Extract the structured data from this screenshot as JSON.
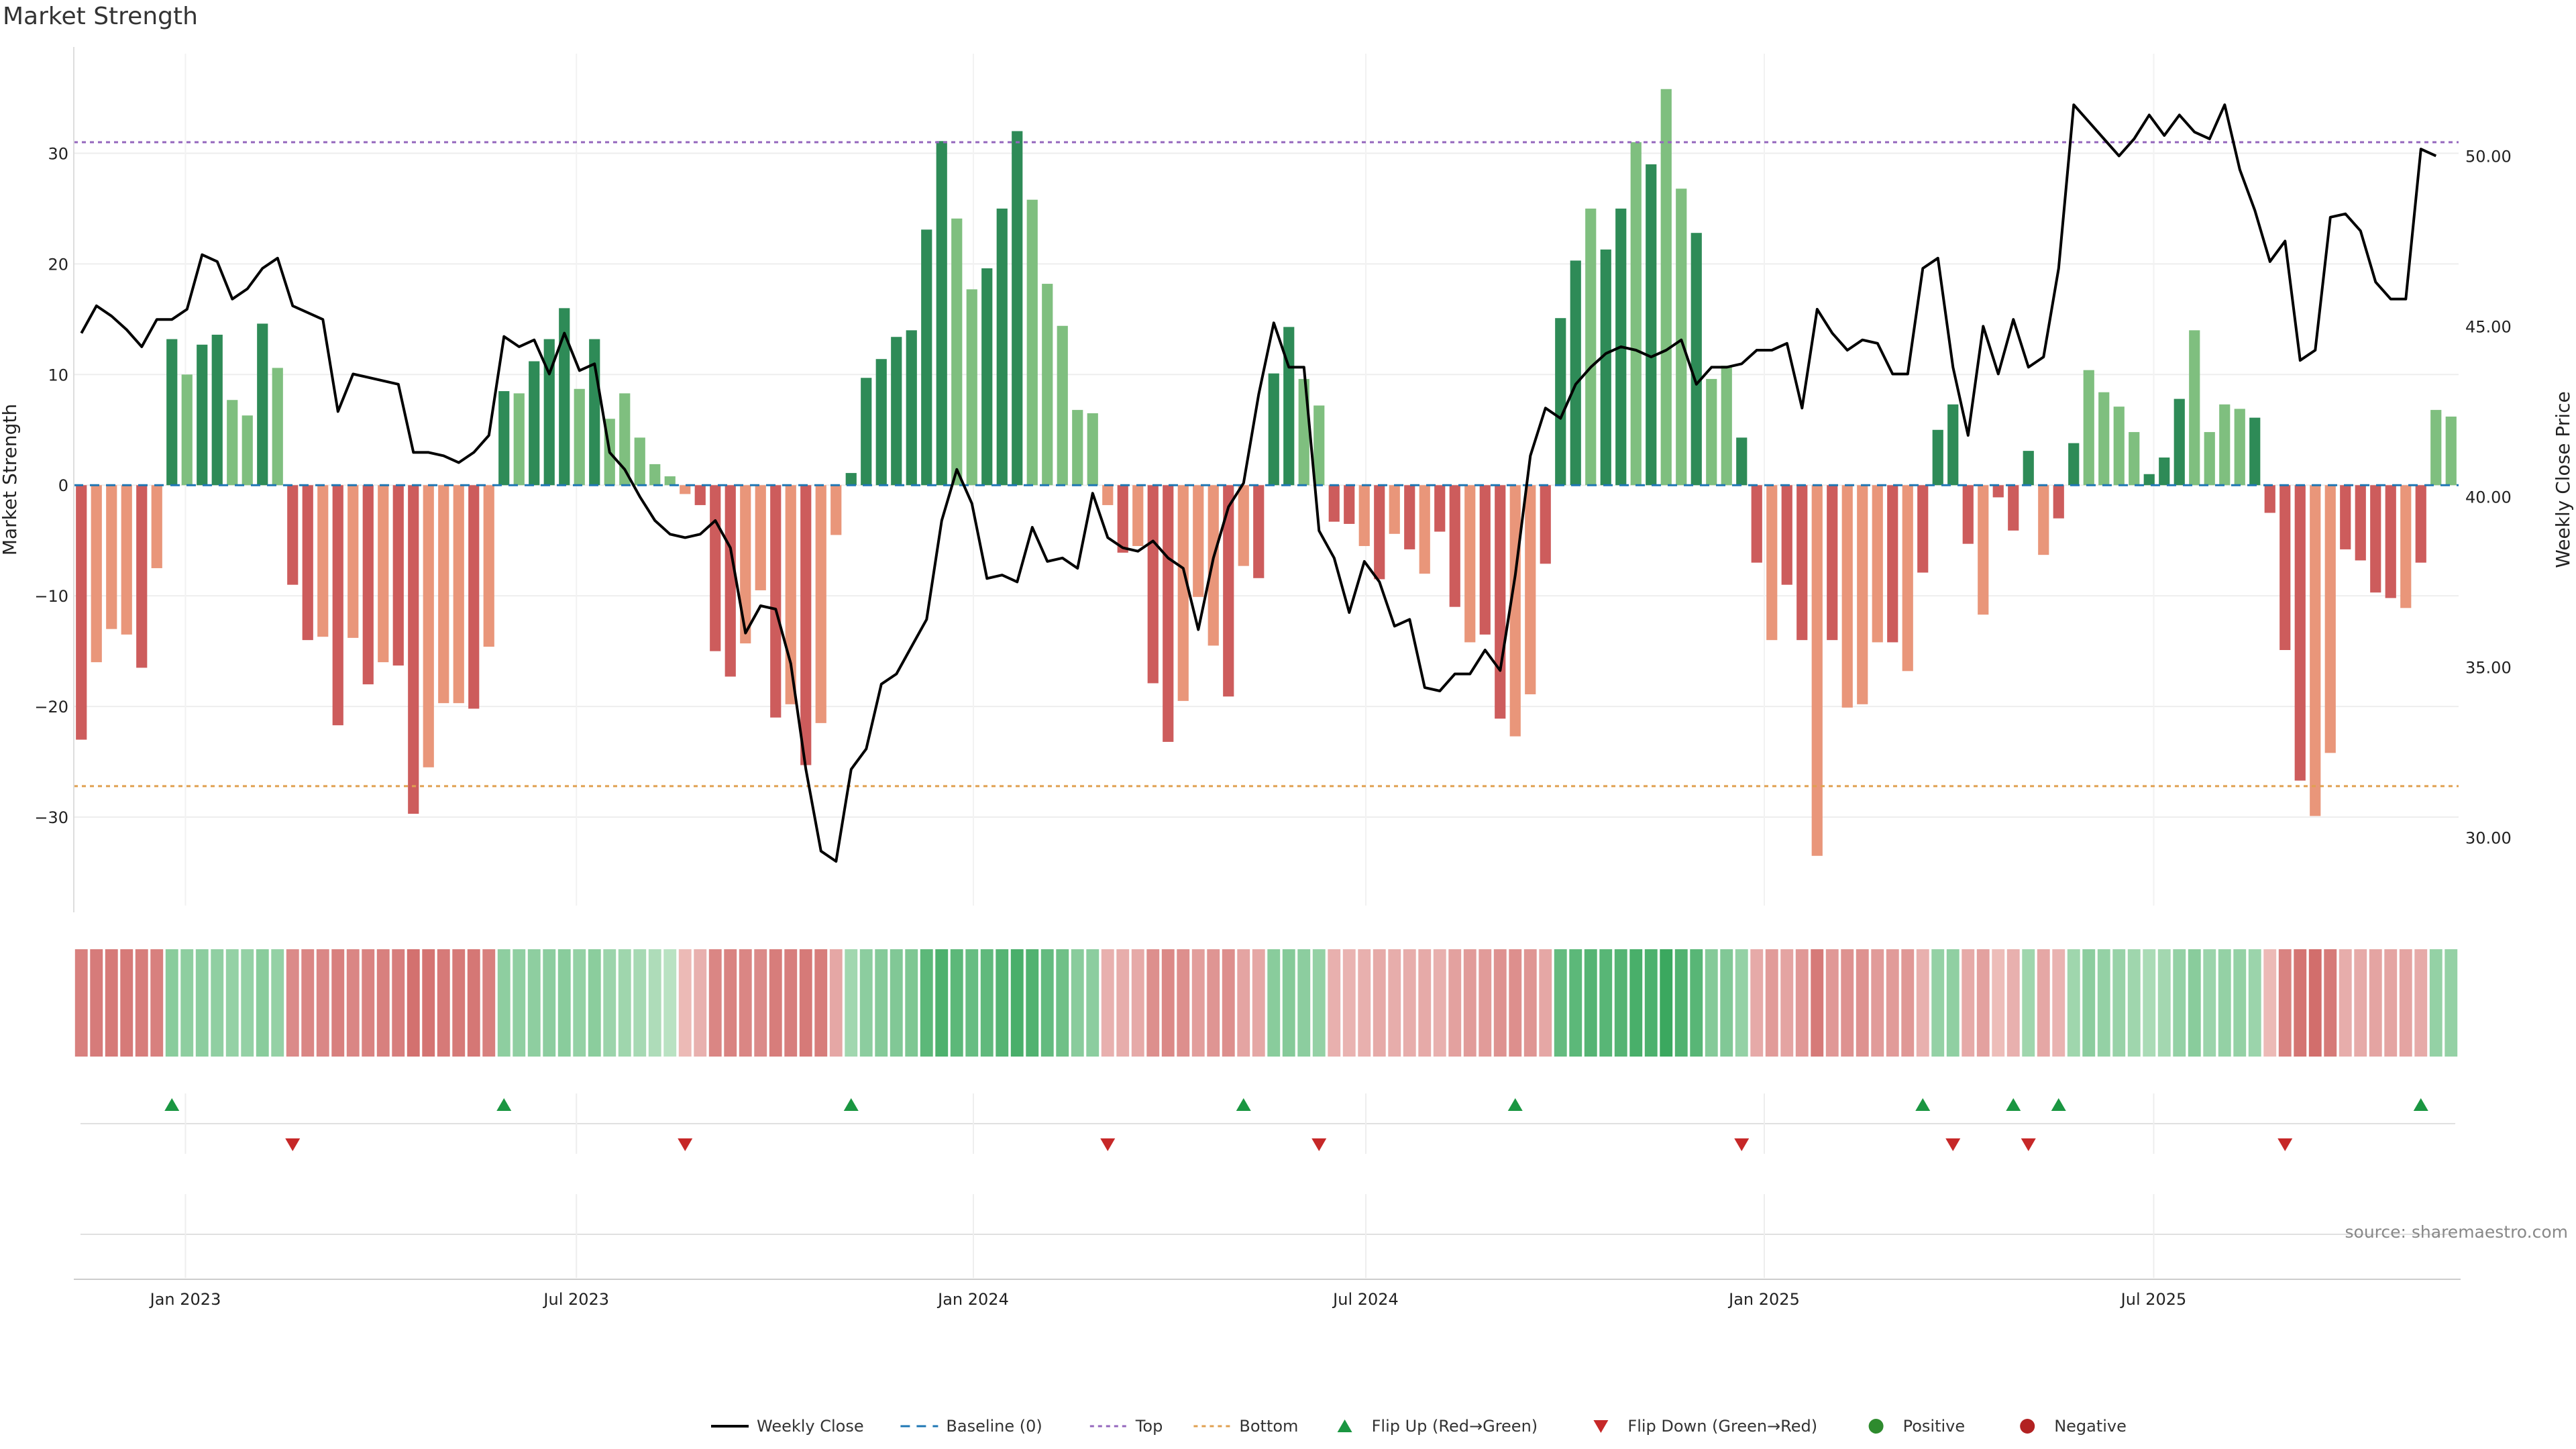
{
  "title": "Market Strength",
  "source": "source: sharemaestro.com",
  "colors": {
    "pos_dark": "#2e8b57",
    "pos_light": "#7fbf7f",
    "neg_dark": "#cd5c5c",
    "neg_light": "#e9967a",
    "price_line": "#000000",
    "baseline": "#1f77b4",
    "top_line": "#9467bd",
    "bottom_line": "#e0a050",
    "flip_up": "#1a9641",
    "flip_down": "#c62828",
    "positive": "#2e8b2e",
    "negative": "#b22222"
  },
  "chart_data": {
    "type": "bar",
    "title": "Market Strength",
    "ylabel": "Market Strength",
    "y2label": "Weekly Close Price",
    "ylim": [
      -38,
      39
    ],
    "y2lim": [
      28,
      53
    ],
    "yticks": [
      -30,
      -20,
      -10,
      0,
      10,
      20,
      30
    ],
    "yticklabels": [
      "−30",
      "−20",
      "−10",
      "0",
      "10",
      "20",
      "30"
    ],
    "y2ticks": [
      30,
      35,
      40,
      45,
      50
    ],
    "y2ticklabels": [
      "30.00",
      "35.00",
      "40.00",
      "45.00",
      "50.00"
    ],
    "xticklabels": [
      "Jan 2023",
      "Jul 2023",
      "Jan 2024",
      "Jul 2024",
      "Jan 2025",
      "Jul 2025"
    ],
    "xtick_week_index": [
      7.4,
      33.3,
      59.6,
      85.6,
      112.0,
      137.8
    ],
    "top_level": 31,
    "bottom_level": -27.2,
    "grid": true,
    "strength": [
      -23,
      -16,
      -13,
      -13.5,
      -16.5,
      -7.5,
      13.2,
      10,
      12.7,
      13.6,
      7.7,
      6.3,
      14.6,
      10.6,
      -9,
      -14,
      -13.7,
      -21.7,
      -13.8,
      -18,
      -16,
      -16.3,
      -29.7,
      -25.5,
      -19.7,
      -19.7,
      -20.2,
      -14.6,
      8.5,
      8.3,
      11.2,
      13.2,
      16,
      8.7,
      13.2,
      6,
      8.3,
      4.3,
      1.9,
      0.8,
      -0.8,
      -1.8,
      -15,
      -17.3,
      -14.3,
      -9.5,
      -21,
      -19.8,
      -25.3,
      -21.5,
      -4.5,
      1.1,
      9.7,
      11.4,
      13.4,
      14,
      23.1,
      31.1,
      24.1,
      17.7,
      19.6,
      25,
      32,
      25.8,
      18.2,
      14.4,
      6.8,
      6.5,
      -1.8,
      -6.1,
      -5.5,
      -17.9,
      -23.2,
      -19.5,
      -10.1,
      -14.5,
      -19.1,
      -7.3,
      -8.4,
      10.1,
      14.3,
      9.6,
      7.2,
      -3.3,
      -3.5,
      -5.5,
      -8.5,
      -4.4,
      -5.8,
      -8,
      -4.2,
      -11,
      -14.2,
      -13.5,
      -21.1,
      -22.7,
      -18.9,
      -7.1,
      15.1,
      20.3,
      25,
      21.3,
      25,
      31,
      29,
      35.8,
      26.8,
      22.8,
      9.6,
      10.8,
      4.3,
      -7,
      -14,
      -9,
      -14,
      -33.5,
      -14,
      -20.1,
      -19.8,
      -14.2,
      -14.2,
      -16.8,
      -7.9,
      5,
      7.3,
      -5.3,
      -11.7,
      -1.1,
      -4.1,
      3.1,
      -6.3,
      -3,
      3.8,
      10.4,
      8.4,
      7.1,
      4.8,
      1,
      2.5,
      7.8,
      14,
      4.8,
      7.3,
      6.9,
      6.1,
      -2.5,
      -14.9,
      -26.7,
      -29.9,
      -24.2,
      -5.8,
      -6.8,
      -9.7,
      -10.2,
      -11.1,
      -7,
      6.8,
      6.2
    ],
    "shade": [
      "dark",
      "light",
      "light",
      "light",
      "dark",
      "light",
      "dark",
      "light",
      "dark",
      "dark",
      "light",
      "light",
      "dark",
      "light",
      "dark",
      "dark",
      "light",
      "dark",
      "light",
      "dark",
      "light",
      "dark",
      "dark",
      "light",
      "light",
      "light",
      "dark",
      "light",
      "dark",
      "light",
      "dark",
      "dark",
      "dark",
      "light",
      "dark",
      "light",
      "light",
      "light",
      "light",
      "light",
      "light",
      "dark",
      "dark",
      "dark",
      "light",
      "light",
      "dark",
      "light",
      "dark",
      "light",
      "light",
      "dark",
      "dark",
      "dark",
      "dark",
      "dark",
      "dark",
      "dark",
      "light",
      "light",
      "dark",
      "dark",
      "dark",
      "light",
      "light",
      "light",
      "light",
      "light",
      "light",
      "dark",
      "light",
      "dark",
      "dark",
      "light",
      "light",
      "light",
      "dark",
      "light",
      "dark",
      "dark",
      "dark",
      "light",
      "light",
      "dark",
      "dark",
      "light",
      "dark",
      "light",
      "dark",
      "light",
      "dark",
      "dark",
      "light",
      "dark",
      "dark",
      "light",
      "light",
      "dark",
      "dark",
      "dark",
      "light",
      "dark",
      "dark",
      "light",
      "dark",
      "light",
      "light",
      "dark",
      "light",
      "light",
      "dark",
      "dark",
      "light",
      "dark",
      "dark",
      "light",
      "dark",
      "light",
      "light",
      "light",
      "dark",
      "light",
      "dark",
      "dark",
      "dark",
      "dark",
      "light",
      "dark",
      "dark",
      "dark",
      "light",
      "dark",
      "dark",
      "light",
      "light",
      "light",
      "light",
      "dark",
      "dark",
      "dark",
      "light",
      "light",
      "light",
      "light",
      "dark",
      "dark",
      "dark",
      "dark",
      "light",
      "light",
      "dark",
      "dark",
      "dark",
      "dark",
      "light",
      "dark",
      "light"
    ],
    "close": [
      44.8,
      45.6,
      45.3,
      44.9,
      44.4,
      45.2,
      45.2,
      45.5,
      47.1,
      46.9,
      45.8,
      46.1,
      46.7,
      47.0,
      45.6,
      45.4,
      45.2,
      42.5,
      43.6,
      43.5,
      43.4,
      43.3,
      41.3,
      41.3,
      41.2,
      41.0,
      41.3,
      41.8,
      44.7,
      44.4,
      44.6,
      43.6,
      44.8,
      43.7,
      43.9,
      41.3,
      40.8,
      40.0,
      39.3,
      38.9,
      38.8,
      38.9,
      39.3,
      38.5,
      36.0,
      36.8,
      36.7,
      35.1,
      32.0,
      29.6,
      29.3,
      32.0,
      32.6,
      34.5,
      34.8,
      35.6,
      36.4,
      39.3,
      40.8,
      39.8,
      37.6,
      37.7,
      37.5,
      39.1,
      38.1,
      38.2,
      37.9,
      40.1,
      38.8,
      38.5,
      38.4,
      38.7,
      38.2,
      37.9,
      36.1,
      38.2,
      39.7,
      40.4,
      43.0,
      45.1,
      43.8,
      43.8,
      39.0,
      38.2,
      36.6,
      38.1,
      37.5,
      36.2,
      36.4,
      34.4,
      34.3,
      34.8,
      34.8,
      35.5,
      34.9,
      37.7,
      41.2,
      42.6,
      42.3,
      43.3,
      43.8,
      44.2,
      44.4,
      44.3,
      44.1,
      44.3,
      44.6,
      43.3,
      43.8,
      43.8,
      43.9,
      44.3,
      44.3,
      44.5,
      42.6,
      45.5,
      44.8,
      44.3,
      44.6,
      44.5,
      43.6,
      43.6,
      46.7,
      47.0,
      43.8,
      41.8,
      45.0,
      43.6,
      45.2,
      43.8,
      44.1,
      46.7,
      51.5,
      51.0,
      50.5,
      50.0,
      50.5,
      51.2,
      50.6,
      51.2,
      50.7,
      50.5,
      51.5,
      49.6,
      48.4,
      46.9,
      47.5,
      44.0,
      44.3,
      48.2,
      48.3,
      47.8,
      46.3,
      45.8,
      45.8,
      50.2,
      50.0
    ],
    "flip_up_weeks": [
      6,
      28,
      51,
      77,
      95,
      122,
      128,
      131,
      155
    ],
    "flip_down_weeks": [
      14,
      40,
      68,
      82,
      110,
      124,
      129,
      146
    ],
    "heat_levels": [
      0.62,
      0.65,
      0.66,
      0.66,
      0.64,
      0.62,
      0.48,
      0.45,
      0.46,
      0.44,
      0.42,
      0.42,
      0.48,
      0.42,
      0.55,
      0.58,
      0.57,
      0.62,
      0.58,
      0.6,
      0.62,
      0.63,
      0.72,
      0.7,
      0.66,
      0.66,
      0.68,
      0.62,
      0.45,
      0.44,
      0.45,
      0.46,
      0.48,
      0.42,
      0.47,
      0.38,
      0.36,
      0.32,
      0.28,
      0.22,
      0.24,
      0.3,
      0.58,
      0.6,
      0.58,
      0.55,
      0.64,
      0.63,
      0.66,
      0.64,
      0.36,
      0.35,
      0.46,
      0.5,
      0.52,
      0.54,
      0.72,
      0.8,
      0.72,
      0.66,
      0.7,
      0.76,
      0.82,
      0.78,
      0.68,
      0.62,
      0.48,
      0.46,
      0.3,
      0.32,
      0.34,
      0.52,
      0.56,
      0.52,
      0.42,
      0.48,
      0.52,
      0.38,
      0.36,
      0.48,
      0.5,
      0.46,
      0.42,
      0.3,
      0.28,
      0.3,
      0.34,
      0.32,
      0.32,
      0.34,
      0.3,
      0.4,
      0.44,
      0.44,
      0.5,
      0.52,
      0.48,
      0.36,
      0.68,
      0.72,
      0.76,
      0.74,
      0.76,
      0.82,
      0.8,
      0.9,
      0.78,
      0.74,
      0.5,
      0.52,
      0.42,
      0.34,
      0.44,
      0.38,
      0.46,
      0.66,
      0.46,
      0.5,
      0.5,
      0.44,
      0.44,
      0.46,
      0.3,
      0.42,
      0.44,
      0.34,
      0.4,
      0.22,
      0.3,
      0.36,
      0.36,
      0.28,
      0.36,
      0.46,
      0.42,
      0.4,
      0.36,
      0.3,
      0.34,
      0.42,
      0.48,
      0.38,
      0.42,
      0.42,
      0.38,
      0.24,
      0.6,
      0.7,
      0.74,
      0.66,
      0.32,
      0.34,
      0.38,
      0.38,
      0.38,
      0.34,
      0.42,
      0.42
    ]
  },
  "legend": {
    "weekly_close": "Weekly Close",
    "baseline": "Baseline (0)",
    "top": "Top",
    "bottom": "Bottom",
    "flip_up": "Flip Up (Red→Green)",
    "flip_down": "Flip Down (Green→Red)",
    "positive": "Positive",
    "negative": "Negative"
  }
}
